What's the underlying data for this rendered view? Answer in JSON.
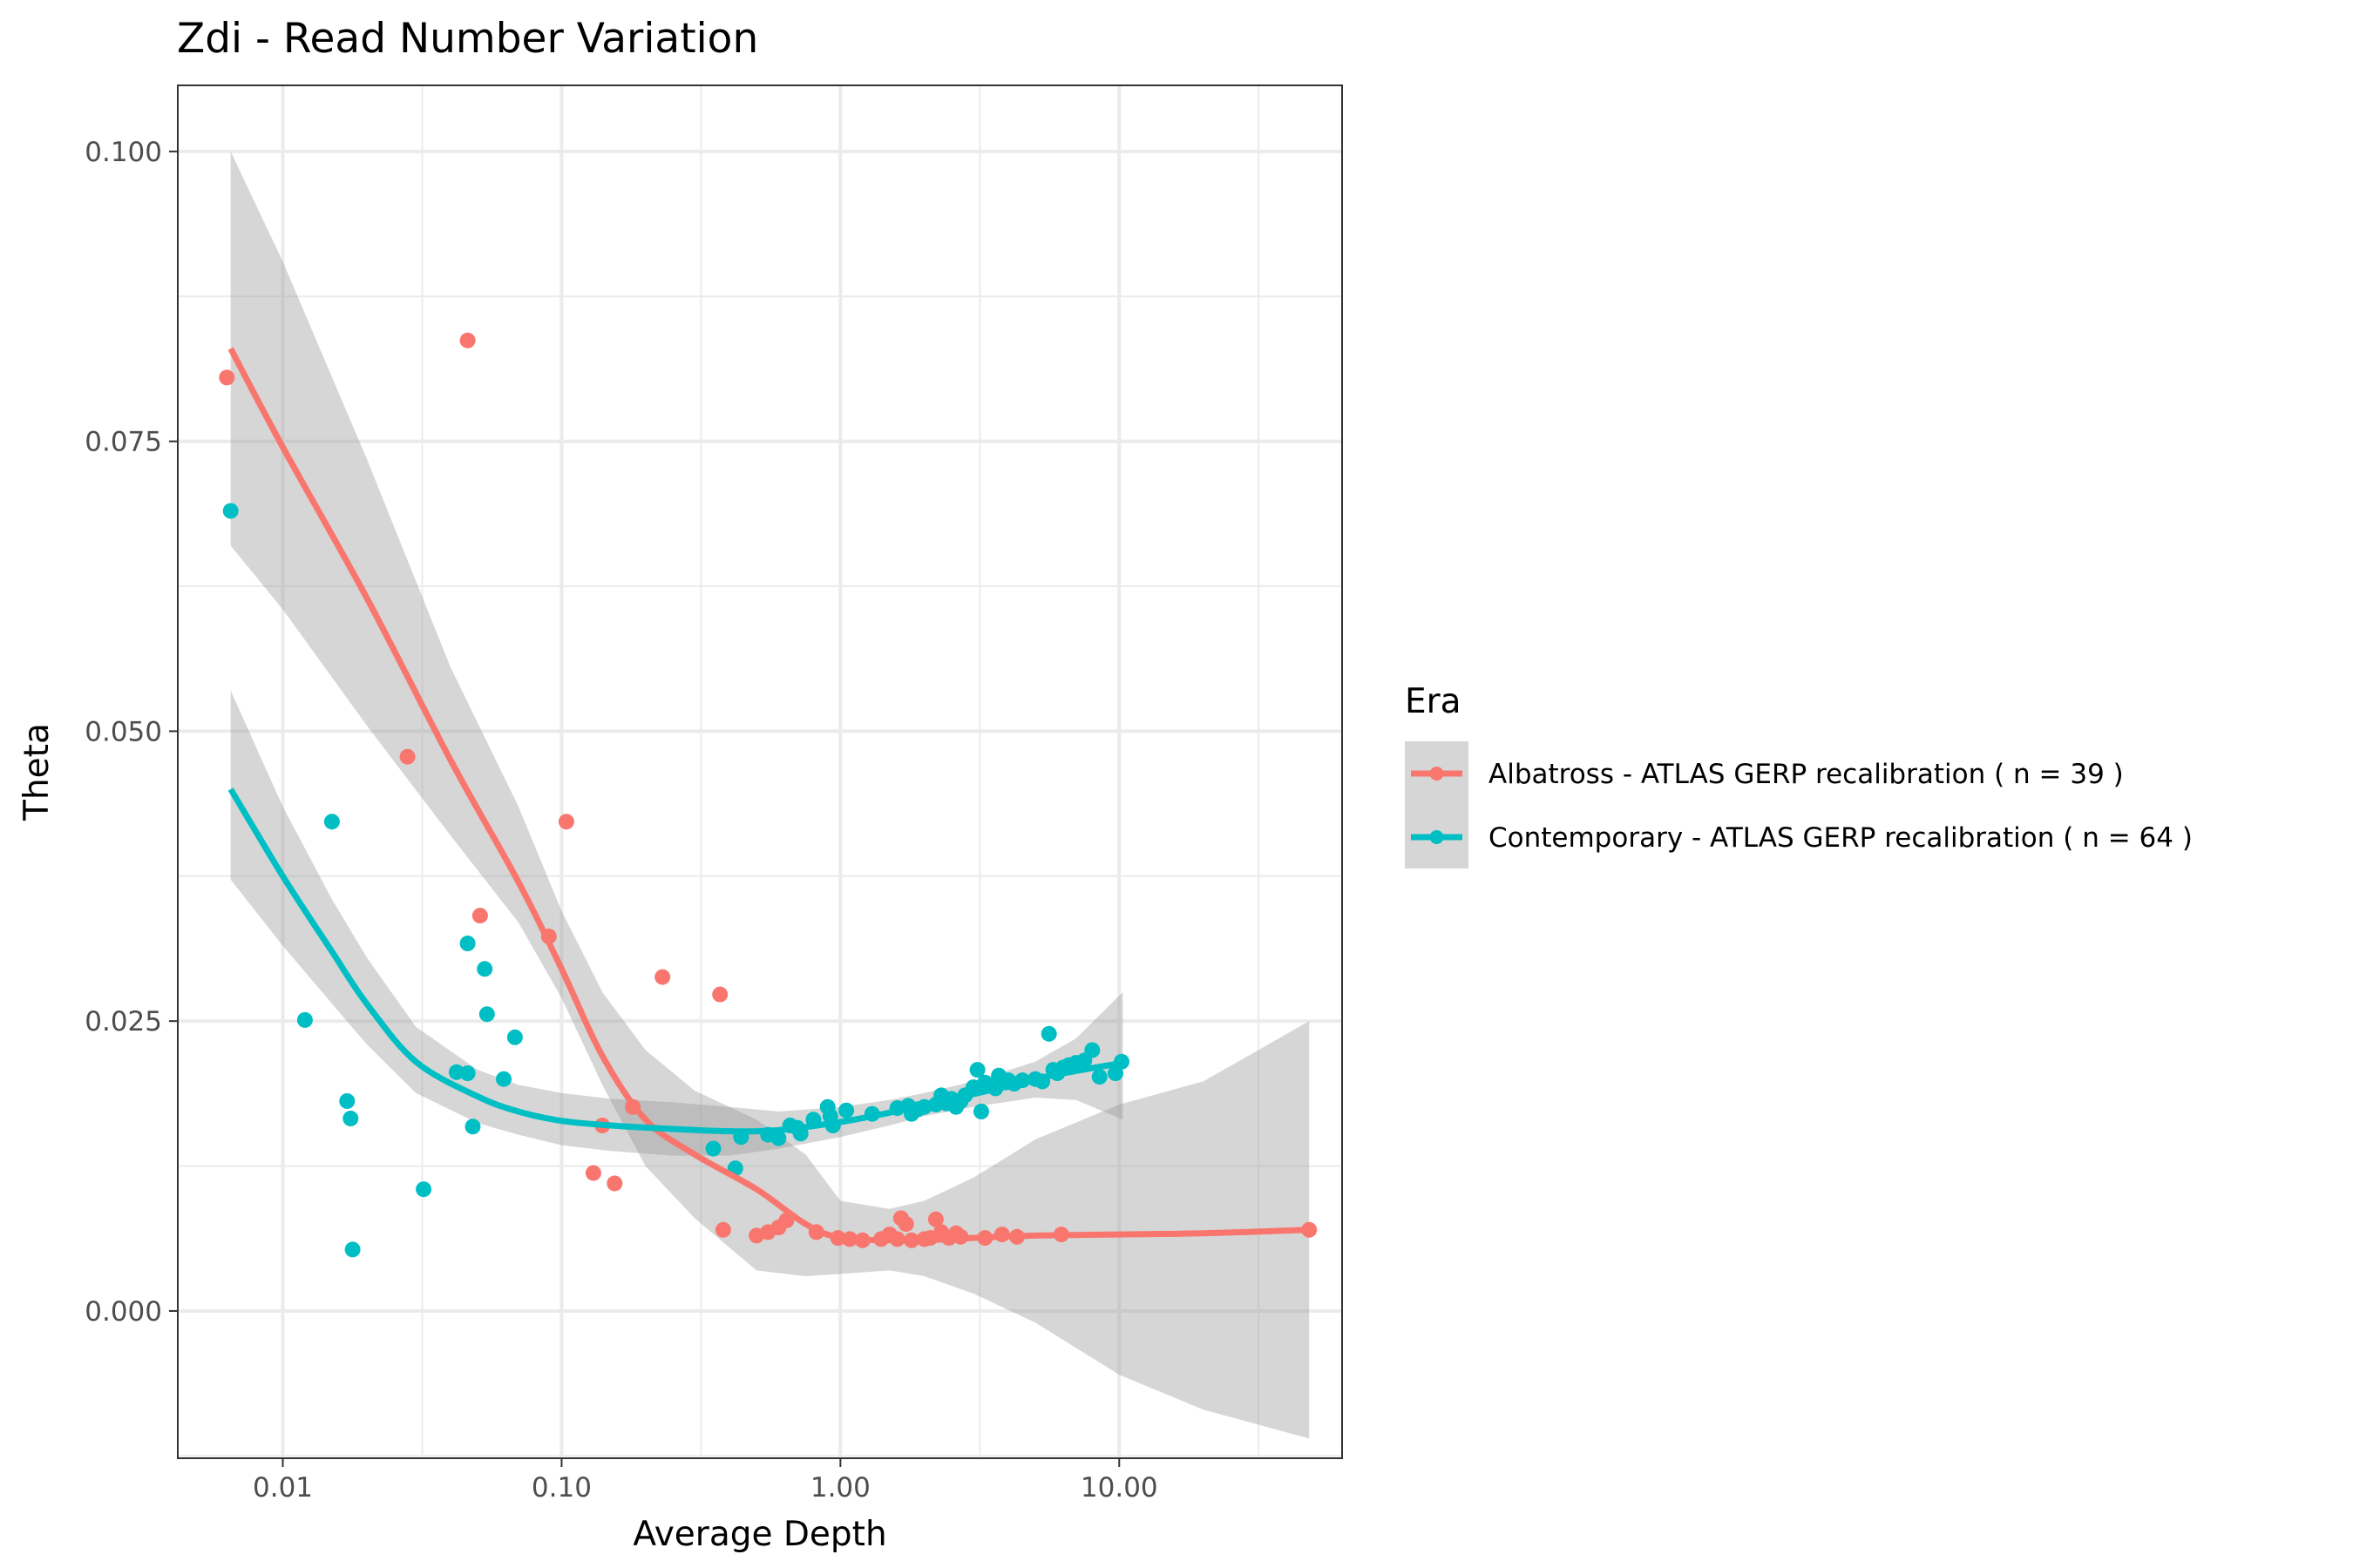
{
  "chart_data": {
    "type": "scatter",
    "title": "Zdi - Read Number Variation",
    "xlabel": "Average Depth",
    "ylabel": "Theta",
    "x_scale": "log10",
    "xlim": [
      0.0042,
      63
    ],
    "ylim": [
      -0.0127,
      0.1057
    ],
    "x_ticks": [
      0.01,
      0.1,
      1,
      10
    ],
    "x_tick_labels": [
      "0.01",
      "0.10",
      "1.00",
      "10.00"
    ],
    "y_ticks": [
      0,
      0.025,
      0.05,
      0.075,
      0.1
    ],
    "y_tick_labels": [
      "0.000",
      "0.025",
      "0.050",
      "0.075",
      "0.100"
    ],
    "grid": true,
    "legend": {
      "title": "Era",
      "position": "right"
    },
    "series": [
      {
        "name": "Albatross - ATLAS GERP recalibration ( n = 39 )",
        "color": "#F8766D",
        "points": [
          [
            0.0063,
            0.0805
          ],
          [
            0.046,
            0.0837
          ],
          [
            0.028,
            0.0478
          ],
          [
            0.104,
            0.0422
          ],
          [
            0.051,
            0.0341
          ],
          [
            0.09,
            0.0323
          ],
          [
            0.23,
            0.0288
          ],
          [
            0.37,
            0.0273
          ],
          [
            0.18,
            0.0176
          ],
          [
            0.14,
            0.016
          ],
          [
            0.13,
            0.0119
          ],
          [
            0.155,
            0.011
          ],
          [
            0.38,
            0.007
          ],
          [
            0.5,
            0.0065
          ],
          [
            0.55,
            0.0068
          ],
          [
            0.64,
            0.0078
          ],
          [
            0.82,
            0.0068
          ],
          [
            0.98,
            0.0063
          ],
          [
            1.08,
            0.0062
          ],
          [
            1.4,
            0.0062
          ],
          [
            1.5,
            0.0066
          ],
          [
            1.6,
            0.0062
          ],
          [
            1.65,
            0.008
          ],
          [
            1.72,
            0.0075
          ],
          [
            1.8,
            0.0061
          ],
          [
            2.0,
            0.0062
          ],
          [
            2.1,
            0.0063
          ],
          [
            2.2,
            0.0079
          ],
          [
            2.3,
            0.0068
          ],
          [
            2.45,
            0.0063
          ],
          [
            2.6,
            0.0067
          ],
          [
            3.3,
            0.0063
          ],
          [
            3.8,
            0.0066
          ],
          [
            4.3,
            0.0064
          ],
          [
            6.2,
            0.0066
          ],
          [
            48.0,
            0.007
          ],
          [
            0.6,
            0.0072
          ],
          [
            1.2,
            0.0061
          ],
          [
            2.7,
            0.0064
          ]
        ],
        "fit": [
          [
            0.0065,
            0.083
          ],
          [
            0.01,
            0.0745
          ],
          [
            0.02,
            0.0615
          ],
          [
            0.04,
            0.0475
          ],
          [
            0.07,
            0.037
          ],
          [
            0.1,
            0.0295
          ],
          [
            0.14,
            0.022
          ],
          [
            0.2,
            0.0165
          ],
          [
            0.3,
            0.0135
          ],
          [
            0.5,
            0.0105
          ],
          [
            0.75,
            0.0075
          ],
          [
            1.0,
            0.0063
          ],
          [
            1.5,
            0.0061
          ],
          [
            2.0,
            0.0061
          ],
          [
            3.0,
            0.0063
          ],
          [
            5.0,
            0.0065
          ],
          [
            10.0,
            0.0066
          ],
          [
            20.0,
            0.0067
          ],
          [
            48.0,
            0.007
          ]
        ],
        "ci": [
          [
            0.0065,
            0.066,
            0.1
          ],
          [
            0.01,
            0.0605,
            0.0905
          ],
          [
            0.02,
            0.0505,
            0.0735
          ],
          [
            0.04,
            0.041,
            0.0555
          ],
          [
            0.07,
            0.0335,
            0.0435
          ],
          [
            0.1,
            0.027,
            0.0345
          ],
          [
            0.14,
            0.0195,
            0.0275
          ],
          [
            0.2,
            0.0125,
            0.0225
          ],
          [
            0.3,
            0.008,
            0.019
          ],
          [
            0.5,
            0.0035,
            0.0165
          ],
          [
            0.75,
            0.003,
            0.0135
          ],
          [
            1.0,
            0.0032,
            0.0095
          ],
          [
            1.5,
            0.0035,
            0.0088
          ],
          [
            2.0,
            0.003,
            0.0095
          ],
          [
            3.0,
            0.0015,
            0.0115
          ],
          [
            5.0,
            -0.001,
            0.0148
          ],
          [
            10.0,
            -0.0055,
            0.0178
          ],
          [
            20.0,
            -0.0085,
            0.0198
          ],
          [
            48.0,
            -0.011,
            0.025
          ]
        ]
      },
      {
        "name": "Contemporary - ATLAS GERP recalibration ( n = 64 )",
        "color": "#00BFC4",
        "points": [
          [
            0.0065,
            0.069
          ],
          [
            0.015,
            0.0422
          ],
          [
            0.012,
            0.0251
          ],
          [
            0.017,
            0.0181
          ],
          [
            0.0175,
            0.0166
          ],
          [
            0.0178,
            0.0053
          ],
          [
            0.032,
            0.0105
          ],
          [
            0.046,
            0.0317
          ],
          [
            0.053,
            0.0295
          ],
          [
            0.054,
            0.0256
          ],
          [
            0.068,
            0.0236
          ],
          [
            0.042,
            0.0206
          ],
          [
            0.046,
            0.0205
          ],
          [
            0.062,
            0.02
          ],
          [
            0.048,
            0.0159
          ],
          [
            0.35,
            0.014
          ],
          [
            0.42,
            0.0123
          ],
          [
            0.44,
            0.015
          ],
          [
            0.6,
            0.0149
          ],
          [
            0.66,
            0.016
          ],
          [
            0.72,
            0.0153
          ],
          [
            0.9,
            0.0176
          ],
          [
            0.92,
            0.0168
          ],
          [
            0.94,
            0.016
          ],
          [
            1.05,
            0.0173
          ],
          [
            1.75,
            0.0177
          ],
          [
            1.8,
            0.017
          ],
          [
            2.0,
            0.0176
          ],
          [
            2.2,
            0.0178
          ],
          [
            2.3,
            0.0186
          ],
          [
            2.6,
            0.0176
          ],
          [
            2.8,
            0.0186
          ],
          [
            3.1,
            0.0208
          ],
          [
            3.2,
            0.0172
          ],
          [
            3.3,
            0.0197
          ],
          [
            3.6,
            0.0192
          ],
          [
            3.7,
            0.0203
          ],
          [
            4.0,
            0.0199
          ],
          [
            4.5,
            0.0199
          ],
          [
            5.0,
            0.02
          ],
          [
            5.3,
            0.0198
          ],
          [
            5.6,
            0.0239
          ],
          [
            6.0,
            0.0205
          ],
          [
            6.3,
            0.021
          ],
          [
            7.0,
            0.0214
          ],
          [
            8.0,
            0.0225
          ],
          [
            8.5,
            0.0202
          ],
          [
            9.7,
            0.0205
          ],
          [
            10.2,
            0.0215
          ],
          [
            2.5,
            0.0183
          ],
          [
            3.0,
            0.0193
          ],
          [
            4.2,
            0.0196
          ],
          [
            5.8,
            0.0208
          ],
          [
            1.9,
            0.0174
          ],
          [
            2.7,
            0.0181
          ],
          [
            0.55,
            0.0152
          ],
          [
            0.8,
            0.0165
          ],
          [
            1.6,
            0.0175
          ],
          [
            2.4,
            0.0179
          ],
          [
            3.9,
            0.0197
          ],
          [
            6.6,
            0.0212
          ],
          [
            7.5,
            0.0216
          ],
          [
            0.7,
            0.0158
          ],
          [
            1.3,
            0.017
          ]
        ],
        "fit": [
          [
            0.0065,
            0.045
          ],
          [
            0.01,
            0.0375
          ],
          [
            0.015,
            0.031
          ],
          [
            0.02,
            0.0265
          ],
          [
            0.03,
            0.0215
          ],
          [
            0.05,
            0.0185
          ],
          [
            0.07,
            0.0172
          ],
          [
            0.1,
            0.0164
          ],
          [
            0.15,
            0.016
          ],
          [
            0.25,
            0.0157
          ],
          [
            0.4,
            0.0155
          ],
          [
            0.6,
            0.0156
          ],
          [
            1.0,
            0.0163
          ],
          [
            1.5,
            0.0171
          ],
          [
            2.0,
            0.0178
          ],
          [
            3.0,
            0.0187
          ],
          [
            5.0,
            0.02
          ],
          [
            7.0,
            0.0207
          ],
          [
            10.3,
            0.0214
          ]
        ],
        "ci": [
          [
            0.0065,
            0.0372,
            0.0535
          ],
          [
            0.01,
            0.0315,
            0.0435
          ],
          [
            0.015,
            0.0265,
            0.0355
          ],
          [
            0.02,
            0.023,
            0.0305
          ],
          [
            0.03,
            0.0188,
            0.0245
          ],
          [
            0.05,
            0.0162,
            0.0208
          ],
          [
            0.07,
            0.0152,
            0.0195
          ],
          [
            0.1,
            0.0143,
            0.0188
          ],
          [
            0.15,
            0.0138,
            0.0183
          ],
          [
            0.25,
            0.0134,
            0.018
          ],
          [
            0.4,
            0.0134,
            0.0176
          ],
          [
            0.6,
            0.014,
            0.0172
          ],
          [
            1.0,
            0.015,
            0.0176
          ],
          [
            1.5,
            0.016,
            0.0182
          ],
          [
            2.0,
            0.0168,
            0.0188
          ],
          [
            3.0,
            0.0176,
            0.0198
          ],
          [
            5.0,
            0.0184,
            0.0215
          ],
          [
            7.0,
            0.0182,
            0.0235
          ],
          [
            10.3,
            0.0165,
            0.0275
          ]
        ]
      }
    ]
  }
}
